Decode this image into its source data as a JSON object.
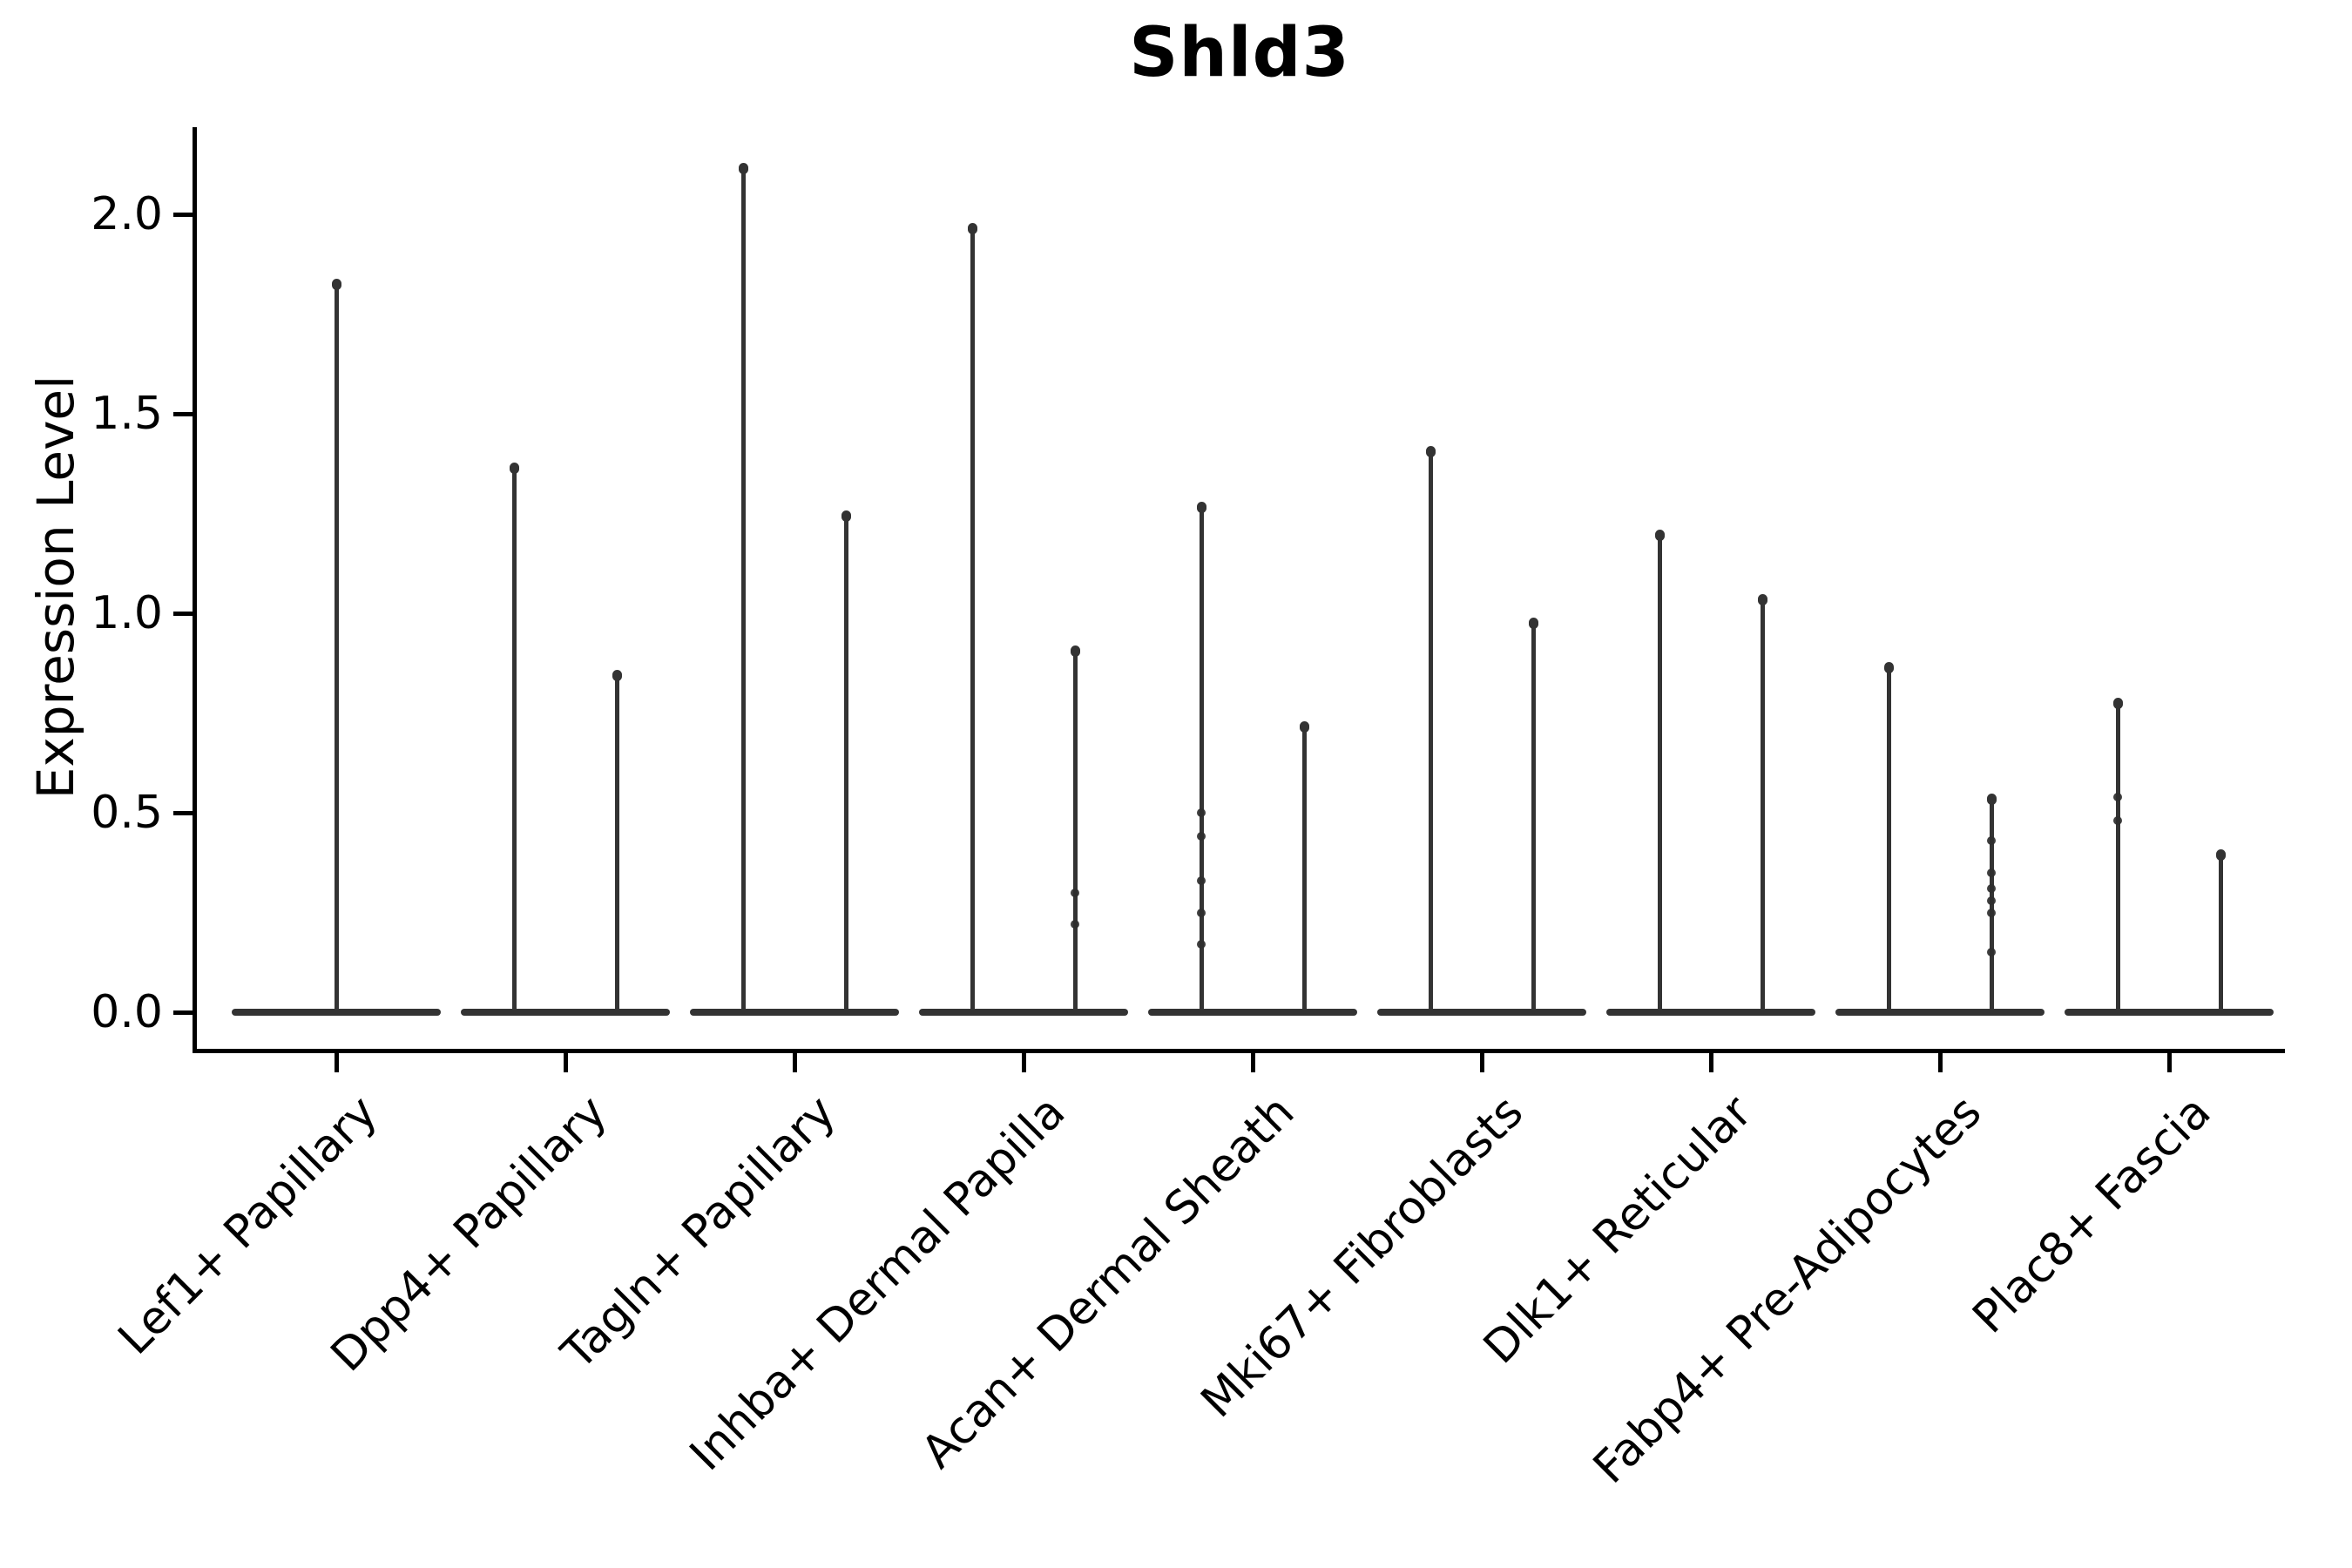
{
  "figure": {
    "title": "Shld3",
    "ylabel": "Expression Level"
  },
  "colors": {
    "violin": "#333333",
    "dot": "#2e2e2e",
    "axis": "#000000",
    "text": "#000000",
    "background": "#ffffff"
  },
  "chart_data": {
    "type": "violin",
    "title": "Shld3",
    "xlabel": "",
    "ylabel": "Expression Level",
    "ylim": [
      -0.11,
      2.22
    ],
    "yticks": [
      "0.0",
      "0.5",
      "1.0",
      "1.5",
      "2.0"
    ],
    "grid": false,
    "legend": null,
    "categories": [
      "Lef1+ Papillary",
      "Dpp4+ Papillary",
      "Tagln+ Papillary",
      "Inhba+ Dermal Papilla",
      "Acan+ Dermal Sheath",
      "Mki67+ Fibroblasts",
      "Dlk1+ Reticular",
      "Fabp4+ Pre-Adipocytes",
      "Plac8+ Fascia"
    ],
    "description": "Violin plot of Shld3 expression; most cells at 0 (wide flat base), thin spikes to max expression",
    "groups": [
      {
        "category": "Lef1+ Papillary",
        "violins": [
          {
            "side": "center",
            "max": 1.83,
            "dots": []
          }
        ]
      },
      {
        "category": "Dpp4+ Papillary",
        "violins": [
          {
            "side": "left",
            "max": 1.37,
            "dots": []
          },
          {
            "side": "right",
            "max": 0.85,
            "dots": []
          }
        ]
      },
      {
        "category": "Tagln+ Papillary",
        "violins": [
          {
            "side": "left",
            "max": 2.12,
            "dots": []
          },
          {
            "side": "right",
            "max": 1.25,
            "dots": []
          }
        ]
      },
      {
        "category": "Inhba+ Dermal Papilla",
        "violins": [
          {
            "side": "left",
            "max": 1.97,
            "dots": []
          },
          {
            "side": "right",
            "max": 0.91,
            "dots": [
              0.3,
              0.22
            ]
          }
        ]
      },
      {
        "category": "Acan+ Dermal Sheath",
        "violins": [
          {
            "side": "left",
            "max": 1.27,
            "dots": [
              0.5,
              0.44,
              0.33,
              0.25,
              0.17
            ]
          },
          {
            "side": "right",
            "max": 0.72,
            "dots": []
          }
        ]
      },
      {
        "category": "Mki67+ Fibroblasts",
        "violins": [
          {
            "side": "left",
            "max": 1.41,
            "dots": []
          },
          {
            "side": "right",
            "max": 0.98,
            "dots": []
          }
        ]
      },
      {
        "category": "Dlk1+ Reticular",
        "violins": [
          {
            "side": "left",
            "max": 1.2,
            "dots": []
          },
          {
            "side": "right",
            "max": 1.04,
            "dots": []
          }
        ]
      },
      {
        "category": "Fabp4+ Pre-Adipocytes",
        "violins": [
          {
            "side": "left",
            "max": 0.87,
            "dots": []
          },
          {
            "side": "right",
            "max": 0.54,
            "dots": [
              0.43,
              0.35,
              0.31,
              0.28,
              0.25,
              0.15
            ]
          }
        ]
      },
      {
        "category": "Plac8+ Fascia",
        "violins": [
          {
            "side": "left",
            "max": 0.78,
            "dots": [
              0.54,
              0.48
            ]
          },
          {
            "side": "right",
            "max": 0.4,
            "dots": []
          }
        ]
      }
    ]
  }
}
